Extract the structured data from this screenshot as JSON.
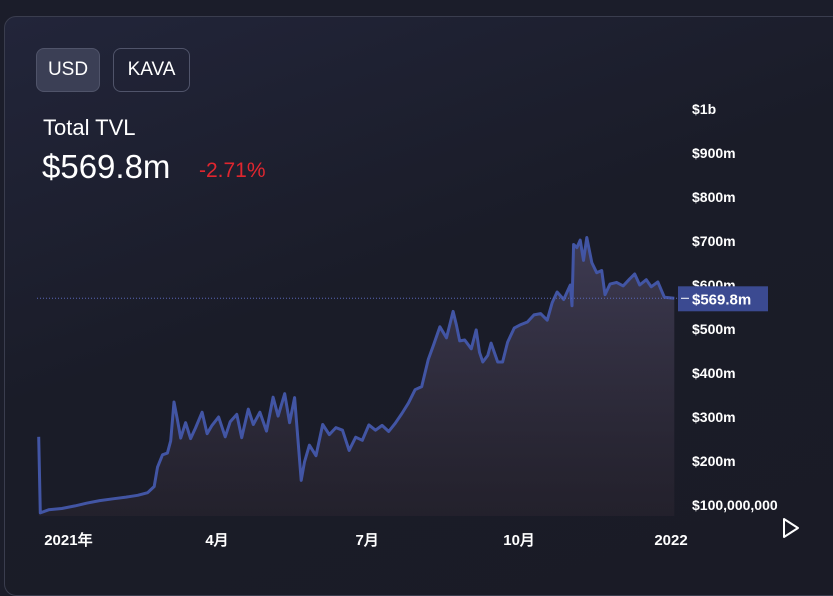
{
  "currency_buttons": [
    "USD",
    "KAVA"
  ],
  "selected_currency": "USD",
  "metric_label": "Total TVL",
  "metric_value": "$569.8m",
  "metric_change": "-2.71%",
  "colors": {
    "line": "#4255a4",
    "negative": "#e0262f",
    "price_tag": "#3b4a91",
    "background": "#1b1d2a"
  },
  "icons": {
    "play": "play-icon"
  },
  "chart_data": {
    "type": "area",
    "title": "",
    "xlabel": "",
    "ylabel": "",
    "x_range": [
      "2020-12-13",
      "2022-01-04"
    ],
    "ylim": [
      75000000,
      1000000000
    ],
    "x_ticks": [
      {
        "date": "2021-01-01",
        "label": "2021年"
      },
      {
        "date": "2021-04-01",
        "label": "4月"
      },
      {
        "date": "2021-07-01",
        "label": "7月"
      },
      {
        "date": "2021-10-01",
        "label": "10月"
      },
      {
        "date": "2022-01-01",
        "label": "2022"
      }
    ],
    "y_ticks": [
      {
        "value": 100000000,
        "label": "$100,000,000"
      },
      {
        "value": 200000000,
        "label": "$200m"
      },
      {
        "value": 300000000,
        "label": "$300m"
      },
      {
        "value": 400000000,
        "label": "$400m"
      },
      {
        "value": 500000000,
        "label": "$500m"
      },
      {
        "value": 600000000,
        "label": "$600m"
      },
      {
        "value": 700000000,
        "label": "$700m"
      },
      {
        "value": 800000000,
        "label": "$800m"
      },
      {
        "value": 900000000,
        "label": "$900m"
      },
      {
        "value": 1000000000,
        "label": "$1b"
      }
    ],
    "current_value": 569800000,
    "current_label": "$569.8m",
    "grid": false,
    "series": [
      {
        "values": [
          [
            "2020-12-14",
            255000000
          ],
          [
            "2020-12-15",
            82000000
          ],
          [
            "2020-12-20",
            89000000
          ],
          [
            "2020-12-28",
            92000000
          ],
          [
            "2021-01-05",
            98000000
          ],
          [
            "2021-01-12",
            104000000
          ],
          [
            "2021-01-20",
            110000000
          ],
          [
            "2021-01-28",
            114000000
          ],
          [
            "2021-02-05",
            118000000
          ],
          [
            "2021-02-12",
            122000000
          ],
          [
            "2021-02-18",
            128000000
          ],
          [
            "2021-02-22",
            142000000
          ],
          [
            "2021-02-24",
            186000000
          ],
          [
            "2021-02-27",
            214000000
          ],
          [
            "2021-03-02",
            218000000
          ],
          [
            "2021-03-04",
            246000000
          ],
          [
            "2021-03-06",
            334000000
          ],
          [
            "2021-03-08",
            295000000
          ],
          [
            "2021-03-10",
            252000000
          ],
          [
            "2021-03-13",
            287000000
          ],
          [
            "2021-03-16",
            251000000
          ],
          [
            "2021-03-19",
            275000000
          ],
          [
            "2021-03-23",
            311000000
          ],
          [
            "2021-03-26",
            262000000
          ],
          [
            "2021-03-29",
            281000000
          ],
          [
            "2021-04-02",
            300000000
          ],
          [
            "2021-04-06",
            255000000
          ],
          [
            "2021-04-09",
            289000000
          ],
          [
            "2021-04-13",
            306000000
          ],
          [
            "2021-04-16",
            253000000
          ],
          [
            "2021-04-20",
            318000000
          ],
          [
            "2021-04-23",
            283000000
          ],
          [
            "2021-04-27",
            311000000
          ],
          [
            "2021-05-01",
            268000000
          ],
          [
            "2021-05-05",
            345000000
          ],
          [
            "2021-05-08",
            302000000
          ],
          [
            "2021-05-12",
            353000000
          ],
          [
            "2021-05-15",
            287000000
          ],
          [
            "2021-05-18",
            344000000
          ],
          [
            "2021-05-20",
            250000000
          ],
          [
            "2021-05-22",
            156000000
          ],
          [
            "2021-05-24",
            198000000
          ],
          [
            "2021-05-27",
            236000000
          ],
          [
            "2021-05-31",
            212000000
          ],
          [
            "2021-06-04",
            283000000
          ],
          [
            "2021-06-08",
            260000000
          ],
          [
            "2021-06-12",
            276000000
          ],
          [
            "2021-06-16",
            270000000
          ],
          [
            "2021-06-20",
            224000000
          ],
          [
            "2021-06-24",
            254000000
          ],
          [
            "2021-06-28",
            247000000
          ],
          [
            "2021-07-02",
            282000000
          ],
          [
            "2021-07-06",
            270000000
          ],
          [
            "2021-07-10",
            281000000
          ],
          [
            "2021-07-14",
            267000000
          ],
          [
            "2021-07-18",
            286000000
          ],
          [
            "2021-07-22",
            308000000
          ],
          [
            "2021-07-26",
            332000000
          ],
          [
            "2021-07-30",
            362000000
          ],
          [
            "2021-08-03",
            369000000
          ],
          [
            "2021-08-07",
            431000000
          ],
          [
            "2021-08-10",
            462000000
          ],
          [
            "2021-08-14",
            505000000
          ],
          [
            "2021-08-18",
            480000000
          ],
          [
            "2021-08-22",
            540000000
          ],
          [
            "2021-08-24",
            509000000
          ],
          [
            "2021-08-26",
            473000000
          ],
          [
            "2021-08-29",
            475000000
          ],
          [
            "2021-09-02",
            455000000
          ],
          [
            "2021-09-05",
            498000000
          ],
          [
            "2021-09-07",
            447000000
          ],
          [
            "2021-09-09",
            425000000
          ],
          [
            "2021-09-12",
            440000000
          ],
          [
            "2021-09-14",
            468000000
          ],
          [
            "2021-09-18",
            425000000
          ],
          [
            "2021-09-21",
            425000000
          ],
          [
            "2021-09-24",
            470000000
          ],
          [
            "2021-09-28",
            502000000
          ],
          [
            "2021-10-02",
            510000000
          ],
          [
            "2021-10-06",
            516000000
          ],
          [
            "2021-10-10",
            532000000
          ],
          [
            "2021-10-14",
            535000000
          ],
          [
            "2021-10-18",
            520000000
          ],
          [
            "2021-10-21",
            560000000
          ],
          [
            "2021-10-24",
            584000000
          ],
          [
            "2021-10-28",
            567000000
          ],
          [
            "2021-11-01",
            600000000
          ],
          [
            "2021-11-02",
            553000000
          ],
          [
            "2021-11-03",
            692000000
          ],
          [
            "2021-11-05",
            685000000
          ],
          [
            "2021-11-07",
            702000000
          ],
          [
            "2021-11-09",
            656000000
          ],
          [
            "2021-11-11",
            708000000
          ],
          [
            "2021-11-14",
            651000000
          ],
          [
            "2021-11-17",
            628000000
          ],
          [
            "2021-11-20",
            633000000
          ],
          [
            "2021-11-22",
            578000000
          ],
          [
            "2021-11-25",
            602000000
          ],
          [
            "2021-11-29",
            606000000
          ],
          [
            "2021-12-03",
            598000000
          ],
          [
            "2021-12-07",
            614000000
          ],
          [
            "2021-12-10",
            625000000
          ],
          [
            "2021-12-13",
            600000000
          ],
          [
            "2021-12-17",
            612000000
          ],
          [
            "2021-12-20",
            596000000
          ],
          [
            "2021-12-24",
            607000000
          ],
          [
            "2021-12-28",
            572000000
          ],
          [
            "2022-01-03",
            569800000
          ]
        ]
      }
    ]
  }
}
